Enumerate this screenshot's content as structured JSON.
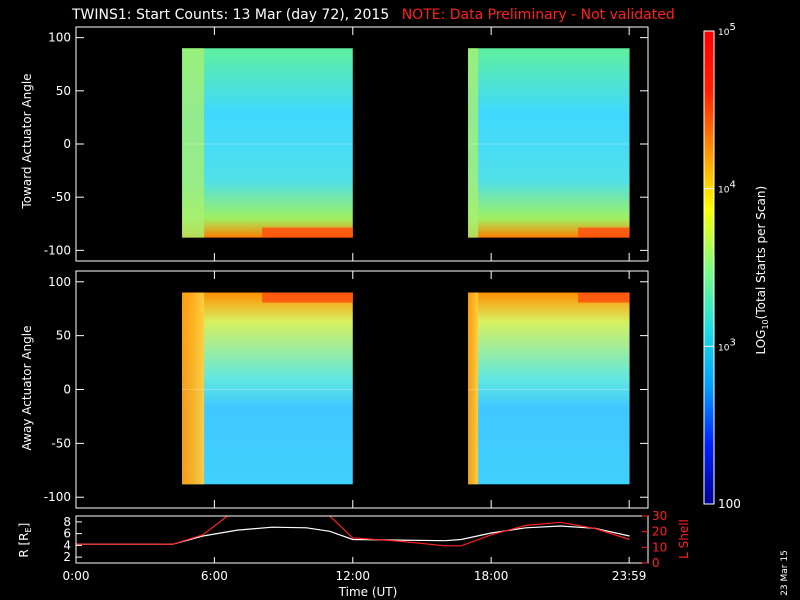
{
  "title": {
    "main": "TWINS1: Start Counts: 13 Mar (day  72), 2015",
    "note": "NOTE: Data Preliminary - Not validated",
    "note_color": "#ff2020"
  },
  "stamp": "23 Mar 15",
  "chart_data": [
    {
      "type": "heatmap",
      "ylabel": "Toward Actuator Angle",
      "ylim": [
        -110,
        110
      ],
      "yticks": [
        -100,
        -50,
        0,
        50,
        100
      ],
      "data_intervals_ut": [
        [
          4.6,
          12.0
        ],
        [
          17.0,
          24.0
        ]
      ]
    },
    {
      "type": "heatmap",
      "ylabel": "Away Actuator Angle",
      "ylim": [
        -110,
        110
      ],
      "yticks": [
        -100,
        -50,
        0,
        50,
        100
      ],
      "data_intervals_ut": [
        [
          4.6,
          12.0
        ],
        [
          17.0,
          24.0
        ]
      ]
    },
    {
      "type": "line",
      "ylabel": "R [R",
      "ylabel_sub": "E",
      "ylabel_end": "]",
      "ylim": [
        1,
        9
      ],
      "yticks": [
        2,
        4,
        6,
        8
      ],
      "y2label": "L Shell",
      "y2lim": [
        0,
        30
      ],
      "y2ticks": [
        0,
        10,
        20,
        30
      ],
      "x": [
        0,
        4.2,
        5.5,
        7,
        8.5,
        10,
        11,
        12,
        14,
        16,
        16.7,
        18,
        19.5,
        21,
        22.5,
        24
      ],
      "series": [
        {
          "color": "#ffffff",
          "values": [
            4.2,
            4.2,
            5.6,
            6.6,
            7.1,
            7.0,
            6.4,
            5.0,
            4.9,
            4.8,
            5.0,
            6.1,
            7.0,
            7.3,
            6.9,
            5.6
          ]
        },
        {
          "color": "#ff2020",
          "axis": "y2",
          "values": [
            12,
            12,
            18,
            35,
            45,
            38,
            30,
            16,
            14,
            11,
            11,
            18,
            24,
            26,
            22,
            15
          ]
        }
      ],
      "xticks": [
        "0:00",
        "6:00",
        "12:00",
        "18:00",
        "23:59"
      ],
      "xtick_values": [
        0,
        6,
        12,
        18,
        23.983
      ],
      "xlabel": "Time (UT)",
      "xlim": [
        0,
        24.8
      ]
    }
  ],
  "colorbar": {
    "label_pre": "LOG",
    "label_sub": "10",
    "label_post": "(Total Starts per Scan)",
    "ticks": [
      {
        "label": "10",
        "sup": "5",
        "value": 100000
      },
      {
        "label": "10",
        "sup": "4",
        "value": 10000
      },
      {
        "label": "10",
        "sup": "3",
        "value": 1000
      },
      {
        "label": "100",
        "sup": "",
        "value": 100
      }
    ],
    "range": [
      100,
      100000
    ],
    "colors": [
      "#000090",
      "#0020ff",
      "#00a0ff",
      "#20e0e0",
      "#80ff80",
      "#ffff00",
      "#ff9000",
      "#ff2000",
      "#ff0000"
    ]
  }
}
